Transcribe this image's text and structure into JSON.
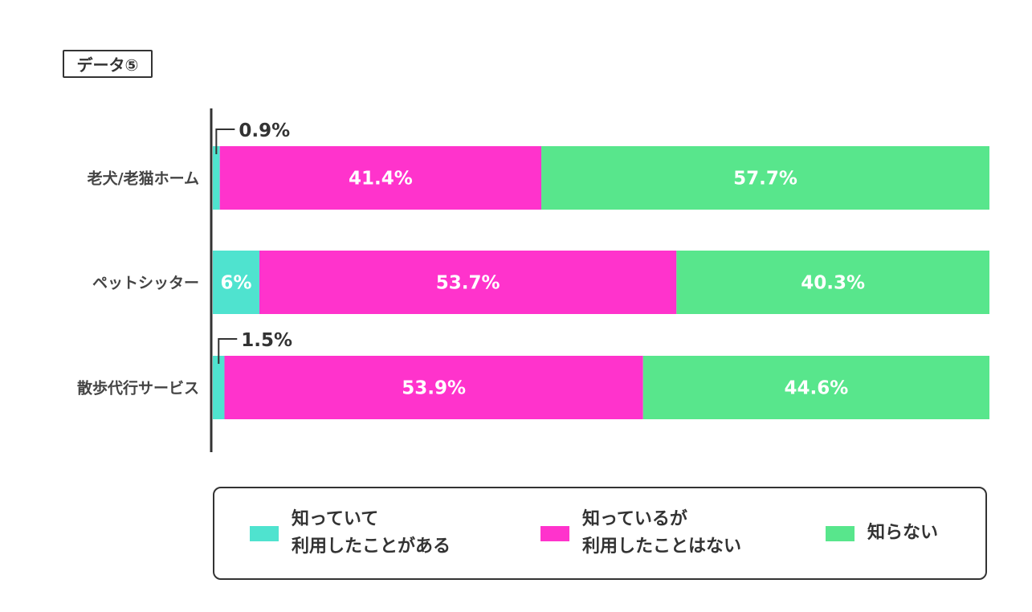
{
  "tag_label": "データ⑤",
  "colors": {
    "used": "#4fe3cf",
    "known_not_used": "#ff33cc",
    "unknown": "#58e68c",
    "axis": "#333333"
  },
  "legend": [
    {
      "label": "知っていて\n利用したことがある",
      "color_key": "used"
    },
    {
      "label": "知っているが\n利用したことはない",
      "color_key": "known_not_used"
    },
    {
      "label": "知らない",
      "color_key": "unknown"
    }
  ],
  "chart_data": {
    "type": "bar",
    "orientation": "horizontal",
    "stacked": true,
    "categories": [
      "老犬/老猫ホーム",
      "ペットシッター",
      "散歩代行サービス"
    ],
    "series": [
      {
        "name": "知っていて利用したことがある",
        "values": [
          0.9,
          6,
          1.5
        ],
        "labels": [
          "0.9%",
          "6%",
          "1.5%"
        ],
        "color_key": "used"
      },
      {
        "name": "知っているが利用したことはない",
        "values": [
          41.4,
          53.7,
          53.9
        ],
        "labels": [
          "41.4%",
          "53.7%",
          "53.9%"
        ],
        "color_key": "known_not_used"
      },
      {
        "name": "知らない",
        "values": [
          57.7,
          40.3,
          44.6
        ],
        "labels": [
          "57.7%",
          "40.3%",
          "44.6%"
        ],
        "color_key": "unknown"
      }
    ],
    "xlim": [
      0,
      100
    ],
    "unit": "%"
  }
}
